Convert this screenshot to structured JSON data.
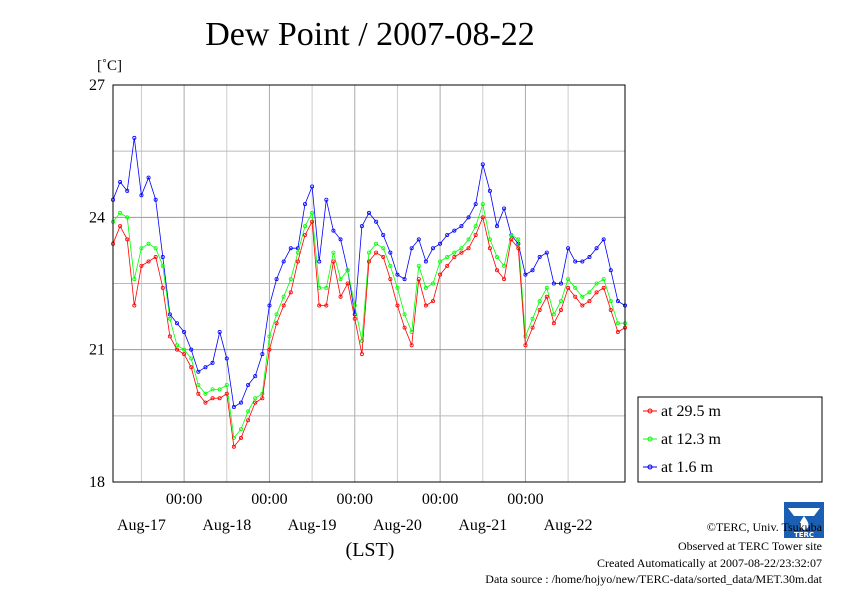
{
  "chart_data": {
    "type": "line",
    "title": "Dew Point / 2007-08-22",
    "ylabel": "[˚C]",
    "xlabel": "(LST)",
    "ylim": [
      18,
      27
    ],
    "yticks": [
      "27",
      "24",
      "21",
      "18"
    ],
    "xticks_time": [
      "00:00",
      "00:00",
      "00:00",
      "00:00",
      "00:00"
    ],
    "xticks_day": [
      "Aug-17",
      "Aug-18",
      "Aug-19",
      "Aug-20",
      "Aug-21",
      "Aug-22"
    ],
    "x_hours": [
      0,
      2,
      4,
      6,
      8,
      10,
      12,
      14,
      16,
      18,
      20,
      22,
      24,
      26,
      28,
      30,
      32,
      34,
      36,
      38,
      40,
      42,
      44,
      46,
      48,
      50,
      52,
      54,
      56,
      58,
      60,
      62,
      64,
      66,
      68,
      70,
      72,
      74,
      76,
      78,
      80,
      82,
      84,
      86,
      88,
      90,
      92,
      94,
      96,
      98,
      100,
      102,
      104,
      106,
      108,
      110,
      112,
      114,
      116,
      118,
      120,
      122,
      124,
      126,
      128,
      130,
      132,
      134,
      136,
      138,
      140,
      142,
      144
    ],
    "grid": true,
    "legend_position": "right",
    "series": [
      {
        "name": "at 29.5 m",
        "color": "#ff0000",
        "values": [
          23.4,
          23.8,
          23.5,
          22.0,
          22.9,
          23.0,
          23.1,
          22.4,
          21.3,
          21.0,
          20.9,
          20.6,
          20.0,
          19.8,
          19.9,
          19.9,
          20.0,
          18.8,
          19.0,
          19.4,
          19.8,
          19.9,
          21.0,
          21.6,
          22.0,
          22.3,
          23.0,
          23.6,
          23.9,
          22.0,
          22.0,
          23.0,
          22.2,
          22.5,
          21.7,
          20.9,
          23.0,
          23.2,
          23.1,
          22.6,
          22.0,
          21.5,
          21.1,
          22.6,
          22.0,
          22.1,
          22.7,
          22.9,
          23.1,
          23.2,
          23.3,
          23.6,
          24.0,
          23.3,
          22.8,
          22.6,
          23.5,
          23.3,
          21.1,
          21.5,
          21.9,
          22.2,
          21.6,
          21.9,
          22.4,
          22.2,
          22.0,
          22.1,
          22.3,
          22.4,
          21.9,
          21.4,
          21.5
        ]
      },
      {
        "name": "at 12.3 m",
        "color": "#00ff00",
        "values": [
          23.9,
          24.1,
          24.0,
          22.6,
          23.3,
          23.4,
          23.3,
          22.9,
          21.7,
          21.1,
          21.0,
          20.8,
          20.2,
          20.0,
          20.1,
          20.1,
          20.2,
          19.0,
          19.2,
          19.6,
          19.9,
          20.0,
          21.3,
          21.8,
          22.2,
          22.6,
          23.2,
          23.8,
          24.1,
          22.4,
          22.4,
          23.2,
          22.6,
          22.8,
          22.0,
          21.2,
          23.2,
          23.4,
          23.3,
          22.9,
          22.4,
          21.8,
          21.4,
          22.9,
          22.4,
          22.5,
          23.0,
          23.1,
          23.2,
          23.3,
          23.5,
          23.8,
          24.3,
          23.5,
          23.1,
          22.9,
          23.6,
          23.5,
          21.3,
          21.7,
          22.1,
          22.4,
          21.8,
          22.1,
          22.6,
          22.4,
          22.2,
          22.3,
          22.5,
          22.6,
          22.1,
          21.6,
          21.6
        ]
      },
      {
        "name": "at 1.6 m",
        "color": "#0000ff",
        "values": [
          24.4,
          24.8,
          24.6,
          25.8,
          24.5,
          24.9,
          24.4,
          23.1,
          21.8,
          21.6,
          21.4,
          21.0,
          20.5,
          20.6,
          20.7,
          21.4,
          20.8,
          19.7,
          19.8,
          20.2,
          20.4,
          20.9,
          22.0,
          22.6,
          23.0,
          23.3,
          23.3,
          24.3,
          24.7,
          23.0,
          24.4,
          23.7,
          23.5,
          22.8,
          21.8,
          23.8,
          24.1,
          23.9,
          23.6,
          23.2,
          22.7,
          22.6,
          23.3,
          23.5,
          23.0,
          23.3,
          23.4,
          23.6,
          23.7,
          23.8,
          24.0,
          24.3,
          25.2,
          24.6,
          23.8,
          24.2,
          23.6,
          23.4,
          22.7,
          22.8,
          23.1,
          23.2,
          22.5,
          22.5,
          23.3,
          23.0,
          23.0,
          23.1,
          23.3,
          23.5,
          22.8,
          22.1,
          22.0
        ]
      }
    ]
  },
  "footer": {
    "copyright": "©TERC, Univ. Tsukuba",
    "observed": "Observed at TERC Tower site",
    "created": "Created Automatically at 2007-08-22/23:32:07",
    "source": "Data source : /home/hojyo/new/TERC-data/sorted_data/MET.30m.dat",
    "logo_text": "TERC"
  }
}
